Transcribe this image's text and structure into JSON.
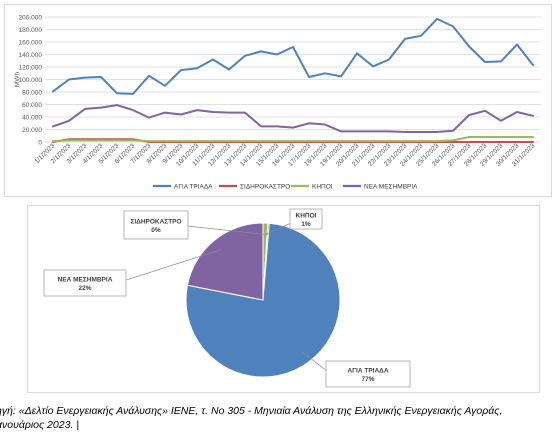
{
  "chart_data": [
    {
      "type": "line",
      "ylabel": "MWh",
      "ylim": [
        0,
        200000
      ],
      "yticks": [
        "0",
        "20.000",
        "40.000",
        "60.000",
        "80.000",
        "100.000",
        "120.000",
        "140.000",
        "160.000",
        "180.000",
        "200.000"
      ],
      "grid": true,
      "legend_position": "bottom",
      "x": [
        "1/1/2023",
        "2/1/2023",
        "3/1/2023",
        "4/1/2023",
        "5/1/2023",
        "6/1/2023",
        "7/1/2023",
        "8/1/2023",
        "9/1/2023",
        "10/1/2023",
        "11/1/2023",
        "12/1/2023",
        "13/1/2023",
        "14/1/2023",
        "15/1/2023",
        "16/1/2023",
        "17/1/2023",
        "18/1/2023",
        "19/1/2023",
        "20/1/2023",
        "21/1/2023",
        "22/1/2023",
        "23/1/2023",
        "24/1/2023",
        "25/1/2023",
        "26/1/2023",
        "27/1/2023",
        "28/1/2023",
        "29/1/2023",
        "30/1/2023",
        "31/1/2023"
      ],
      "series": [
        {
          "name": "ΑΓΙΑ ΤΡΙΑΔΑ",
          "color": "#4f81bd",
          "values": [
            81000,
            100000,
            103000,
            104000,
            78000,
            77000,
            106000,
            90000,
            115000,
            118000,
            132000,
            116000,
            138000,
            145000,
            140000,
            152000,
            104000,
            110000,
            105000,
            142000,
            121000,
            132000,
            165000,
            170000,
            197000,
            185000,
            153000,
            128000,
            129000,
            156000,
            123000
          ]
        },
        {
          "name": "ΣΙΔΗΡΟΚΑΣΤΡΟ",
          "color": "#c0504d",
          "values": [
            0,
            4500,
            4500,
            4500,
            4500,
            4500,
            0,
            0,
            0,
            0,
            0,
            0,
            0,
            0,
            0,
            0,
            0,
            0,
            0,
            0,
            0,
            0,
            0,
            0,
            0,
            0,
            0,
            0,
            0,
            0,
            0
          ]
        },
        {
          "name": "ΚΗΠΟΙ",
          "color": "#9bbb59",
          "values": [
            1500,
            2500,
            2500,
            2500,
            2500,
            2500,
            1500,
            1500,
            1500,
            1500,
            1500,
            1500,
            1500,
            1500,
            1500,
            1500,
            1500,
            1500,
            1500,
            1500,
            1500,
            1500,
            1500,
            1500,
            1500,
            2500,
            8000,
            8000,
            8000,
            8000,
            8000
          ]
        },
        {
          "name": "ΝΕΑ ΜΕΣΗΜΒΡΙΑ",
          "color": "#8064a2",
          "values": [
            25000,
            34000,
            53000,
            55000,
            59000,
            51000,
            39000,
            47000,
            44000,
            51000,
            48000,
            47000,
            47000,
            25000,
            25000,
            23000,
            30000,
            28000,
            17000,
            17000,
            17000,
            17000,
            16000,
            16000,
            16000,
            18000,
            43000,
            50000,
            34000,
            48000,
            42000
          ]
        }
      ]
    },
    {
      "type": "pie",
      "slices": [
        {
          "name": "ΑΓΙΑ ΤΡΙΑΔΑ",
          "percent": "77%",
          "value": 77,
          "color": "#4f81bd"
        },
        {
          "name": "ΣΙΔΗΡΟΚΑΣΤΡΟ",
          "percent": "0%",
          "value": 0.3,
          "color": "#c0504d"
        },
        {
          "name": "ΚΗΠΟΙ",
          "percent": "1%",
          "value": 1,
          "color": "#9bbb59"
        },
        {
          "name": "ΝΕΑ ΜΕΣΗΜΒΡΙΑ",
          "percent": "22%",
          "value": 22,
          "color": "#8064a2"
        }
      ]
    }
  ],
  "source_note": "ηγή: «Δελτίο Ενεργειακής Ανάλυσης» ΙΕΝΕ, τ. Νο 305  - Μηνιαία Ανάλυση της Ελληνικής Ενεργειακής Αγοράς,\nανουάριος 2023.   |"
}
